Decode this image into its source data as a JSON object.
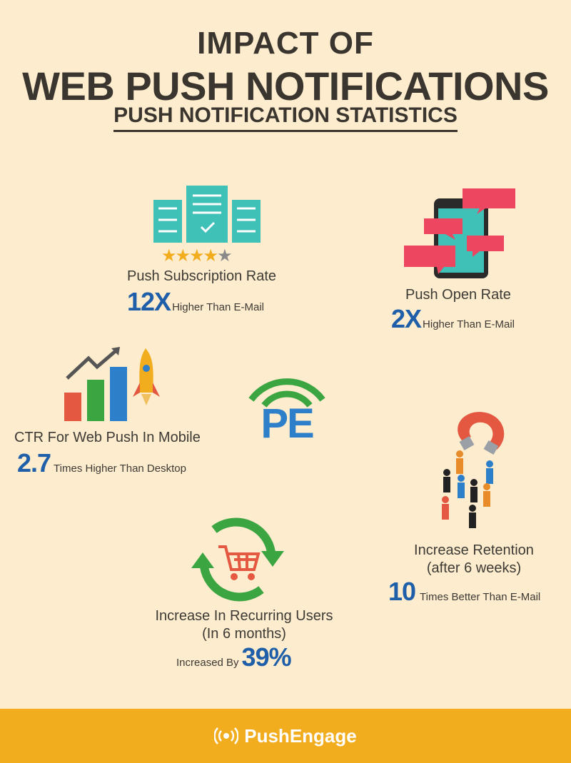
{
  "header": {
    "line1": "IMPACT OF",
    "line2": "WEB PUSH NOTIFICATIONS",
    "line3": "PUSH NOTIFICATION STATISTICS"
  },
  "stats": {
    "subscription": {
      "label": "Push Subscription Rate",
      "value": "12X",
      "suffix": "Higher Than E-Mail",
      "rating": 4.5
    },
    "open_rate": {
      "label": "Push Open Rate",
      "value": "2X",
      "suffix": "Higher Than E-Mail"
    },
    "ctr": {
      "label": "CTR For Web Push In Mobile",
      "value": "2.7",
      "suffix": "Times Higher Than Desktop"
    },
    "retention": {
      "label1": "Increase Retention",
      "label2": "(after 6 weeks)",
      "value": "10",
      "suffix": "Times Better Than E-Mail"
    },
    "recurring": {
      "label1": "Increase In Recurring Users",
      "label2": "(In 6 months)",
      "prefix": "Increased By",
      "value": "39%"
    }
  },
  "center_logo": {
    "text": "PE"
  },
  "footer": {
    "brand": "PushEngage"
  },
  "colors": {
    "background": "#fdeccd",
    "accent_blue": "#1f5ea8",
    "teal": "#3fc1b7",
    "red": "#ec4660",
    "green": "#3aa541",
    "orange": "#f2ad1f"
  }
}
